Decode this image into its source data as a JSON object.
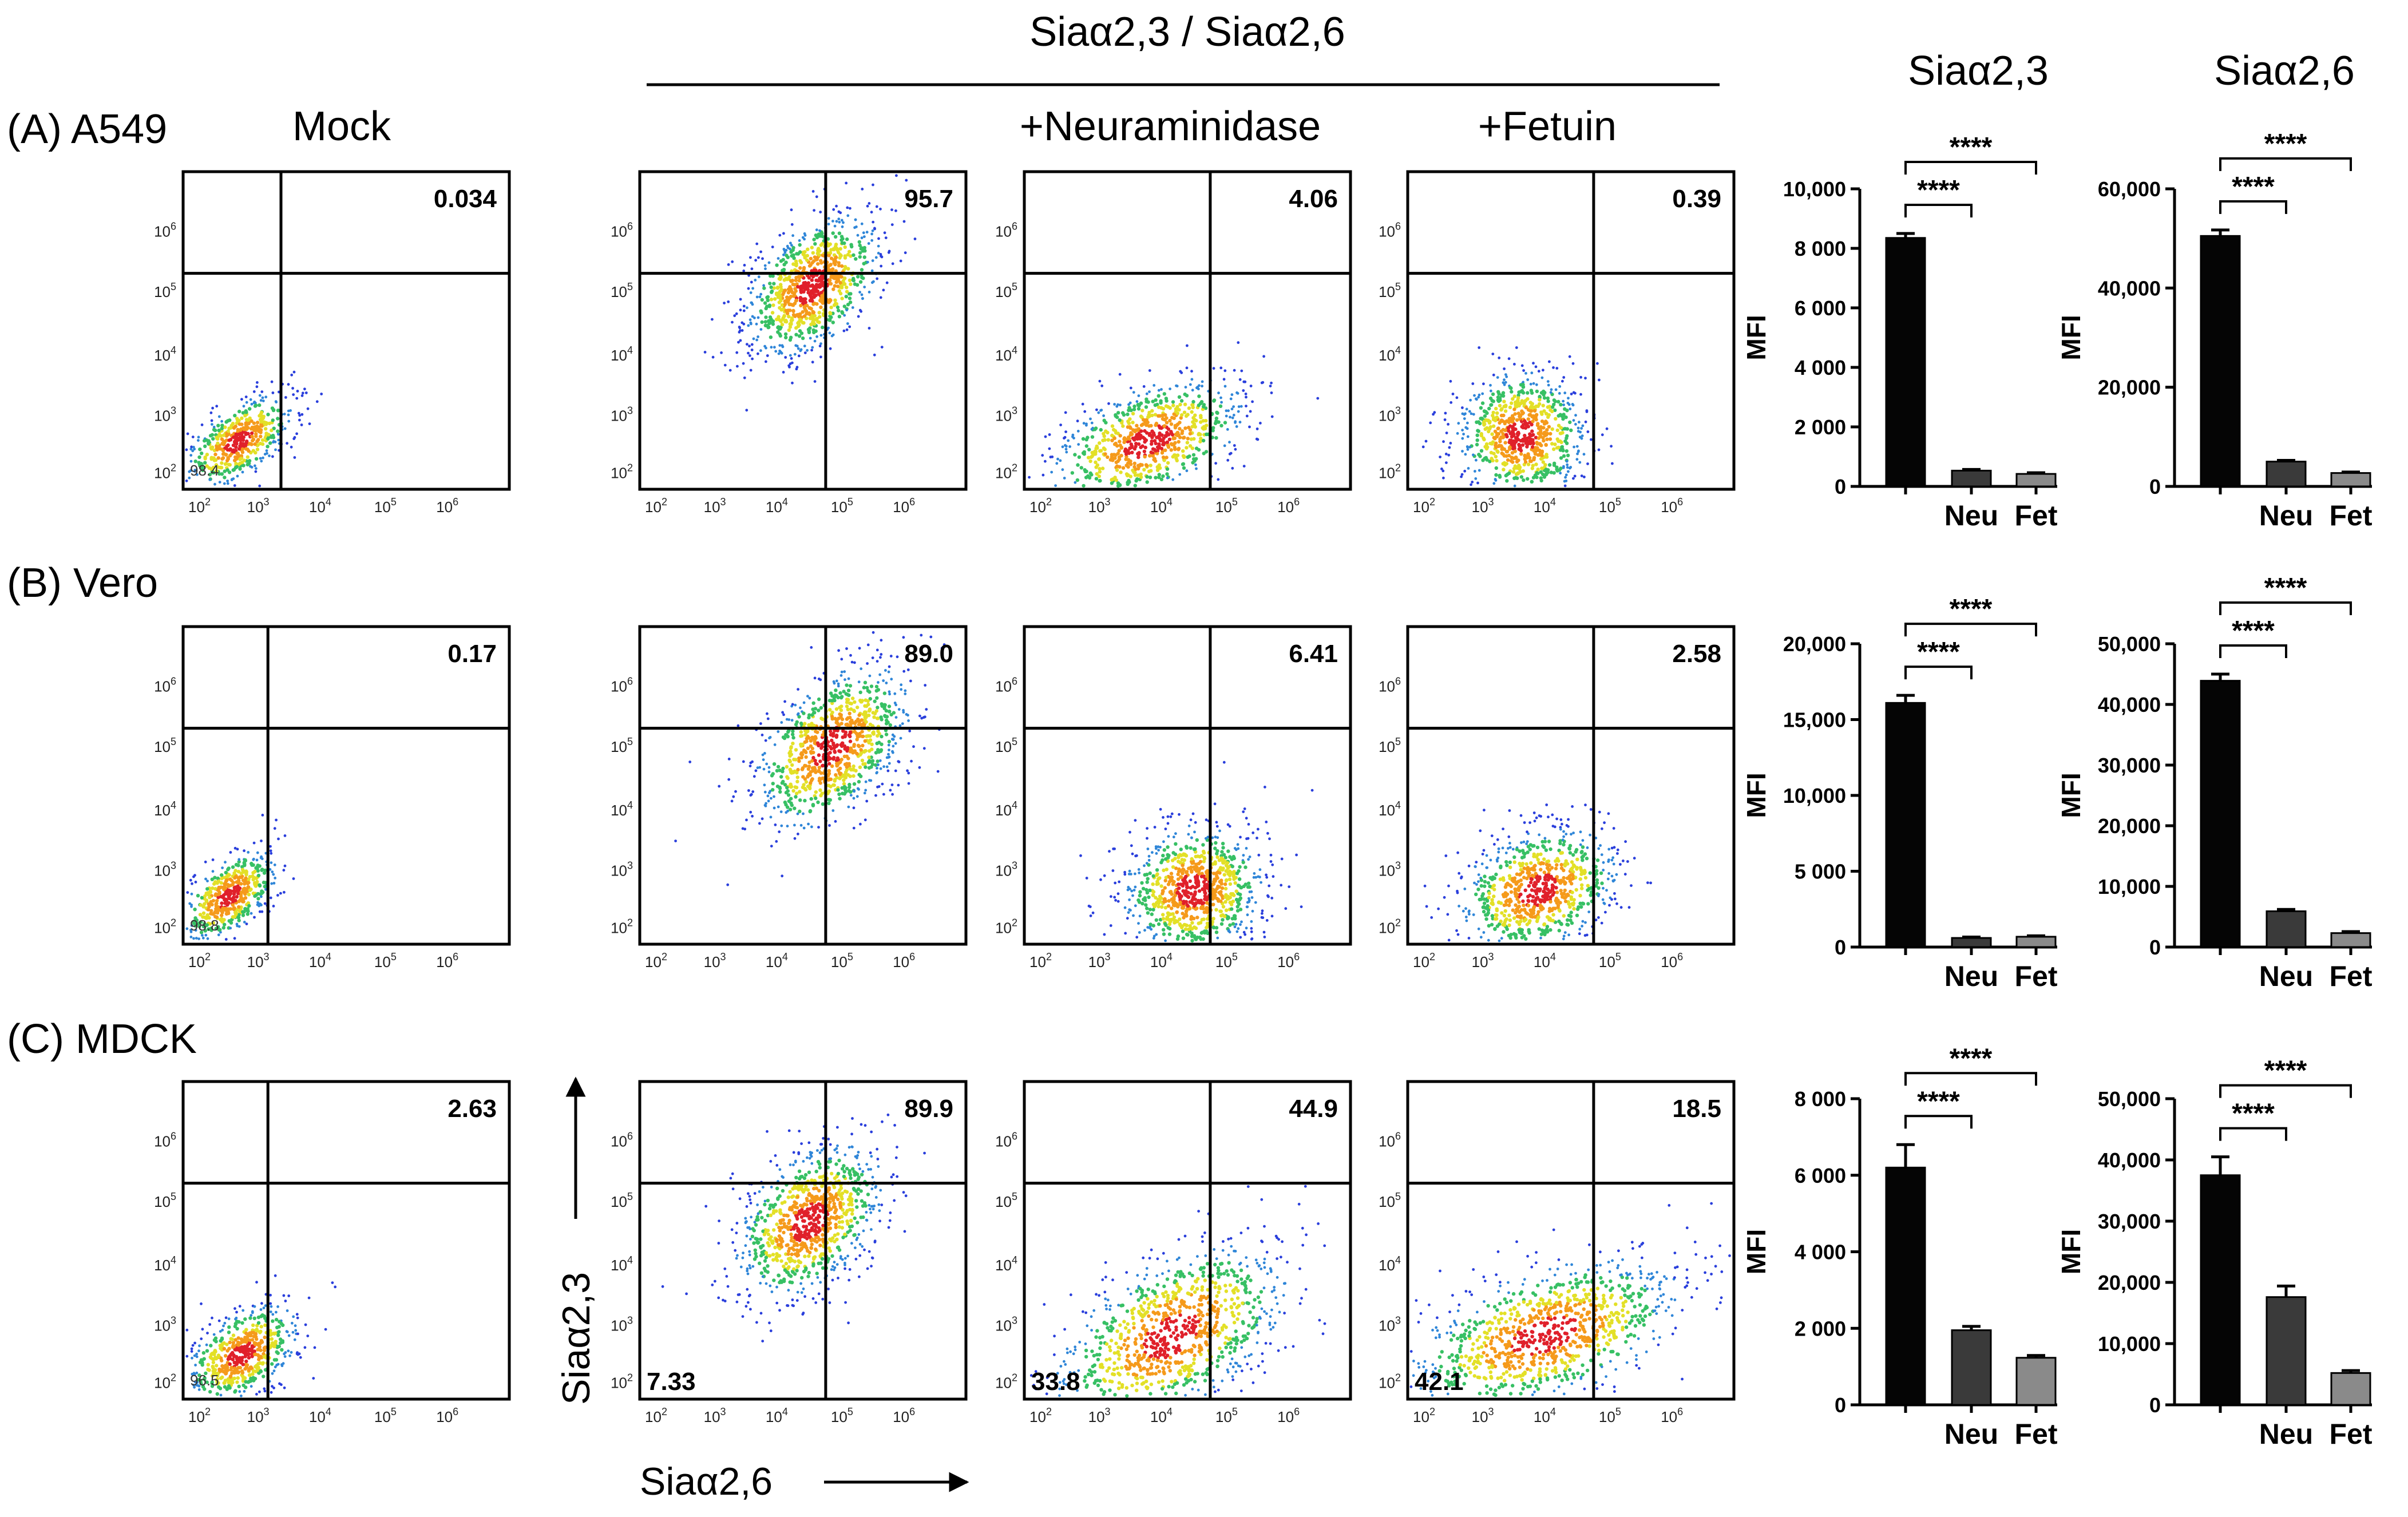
{
  "header": {
    "group_title": "Siaα2,3 / Siaα2,6",
    "col_mock": "Mock",
    "col_neuraminidase": "+Neuraminidase",
    "col_fetuin": "+Fetuin",
    "bar_title_23": "Siaα2,3",
    "bar_title_26": "Siaα2,6"
  },
  "axes": {
    "y_name": "Siaα2,3",
    "x_name": "Siaα2,6",
    "tick_base": "10",
    "tick_exponents": [
      "2",
      "3",
      "4",
      "5",
      "6"
    ]
  },
  "rows": [
    {
      "id": "a549",
      "label": "(A) A549",
      "flow": {
        "mock": {
          "upper_right": "0.034",
          "lower_left": "98.4"
        },
        "stained": {
          "upper_right": "95.7",
          "lower_left": ""
        },
        "neuraminidase": {
          "upper_right": "4.06",
          "lower_left": ""
        },
        "fetuin": {
          "upper_right": "0.39",
          "lower_left": ""
        }
      }
    },
    {
      "id": "vero",
      "label": "(B) Vero",
      "flow": {
        "mock": {
          "upper_right": "0.17",
          "lower_left": "98.8"
        },
        "stained": {
          "upper_right": "89.0",
          "lower_left": ""
        },
        "neuraminidase": {
          "upper_right": "6.41",
          "lower_left": ""
        },
        "fetuin": {
          "upper_right": "2.58",
          "lower_left": ""
        }
      }
    },
    {
      "id": "mdck",
      "label": "(C) MDCK",
      "flow": {
        "mock": {
          "upper_right": "2.63",
          "lower_left": "96.5"
        },
        "stained": {
          "upper_right": "89.9",
          "lower_left": "7.33"
        },
        "neuraminidase": {
          "upper_right": "44.9",
          "lower_left": "33.8"
        },
        "fetuin": {
          "upper_right": "18.5",
          "lower_left": "42.1"
        }
      }
    }
  ],
  "chart_data": [
    {
      "type": "bar",
      "panel": "A549 Siaα2,3",
      "ylabel": "MFI",
      "categories": [
        "",
        "Neu",
        "Fet"
      ],
      "values": [
        8350,
        530,
        420
      ],
      "errors": [
        150,
        40,
        40
      ],
      "ylim": [
        0,
        10000
      ],
      "yticks": [
        0,
        2000,
        4000,
        6000,
        8000,
        10000
      ],
      "ytick_labels": [
        "0",
        "2 000",
        "4 000",
        "6 000",
        "8 000",
        "10,000"
      ],
      "significance": [
        "****",
        "****"
      ],
      "colors": [
        "#050505",
        "#3a3a3a",
        "#8a8a8a"
      ]
    },
    {
      "type": "bar",
      "panel": "A549 Siaα2,6",
      "ylabel": "MFI",
      "categories": [
        "",
        "Neu",
        "Fet"
      ],
      "values": [
        50500,
        5000,
        2700
      ],
      "errors": [
        1200,
        250,
        200
      ],
      "ylim": [
        0,
        60000
      ],
      "yticks": [
        0,
        20000,
        40000,
        60000
      ],
      "ytick_labels": [
        "0",
        "20,000",
        "40,000",
        "60,000"
      ],
      "significance": [
        "****",
        "****"
      ],
      "colors": [
        "#050505",
        "#3a3a3a",
        "#8a8a8a"
      ]
    },
    {
      "type": "bar",
      "panel": "Vero Siaα2,3",
      "ylabel": "MFI",
      "categories": [
        "",
        "Neu",
        "Fet"
      ],
      "values": [
        16100,
        600,
        680
      ],
      "errors": [
        500,
        60,
        60
      ],
      "ylim": [
        0,
        20000
      ],
      "yticks": [
        0,
        5000,
        10000,
        15000,
        20000
      ],
      "ytick_labels": [
        "0",
        "5 000",
        "10,000",
        "15,000",
        "20,000"
      ],
      "significance": [
        "****",
        "****"
      ],
      "colors": [
        "#050505",
        "#3a3a3a",
        "#8a8a8a"
      ]
    },
    {
      "type": "bar",
      "panel": "Vero Siaα2,6",
      "ylabel": "MFI",
      "categories": [
        "",
        "Neu",
        "Fet"
      ],
      "values": [
        43900,
        5900,
        2300
      ],
      "errors": [
        1100,
        300,
        250
      ],
      "ylim": [
        0,
        50000
      ],
      "yticks": [
        0,
        10000,
        20000,
        30000,
        40000,
        50000
      ],
      "ytick_labels": [
        "0",
        "10,000",
        "20,000",
        "30,000",
        "40,000",
        "50,000"
      ],
      "significance": [
        "****",
        "****"
      ],
      "colors": [
        "#050505",
        "#3a3a3a",
        "#8a8a8a"
      ]
    },
    {
      "type": "bar",
      "panel": "MDCK Siaα2,3",
      "ylabel": "MFI",
      "categories": [
        "",
        "Neu",
        "Fet"
      ],
      "values": [
        6200,
        1950,
        1230
      ],
      "errors": [
        600,
        100,
        60
      ],
      "ylim": [
        0,
        8000
      ],
      "yticks": [
        0,
        2000,
        4000,
        6000,
        8000
      ],
      "ytick_labels": [
        "0",
        "2 000",
        "4 000",
        "6 000",
        "8 000"
      ],
      "significance": [
        "****",
        "****"
      ],
      "colors": [
        "#050505",
        "#3a3a3a",
        "#8a8a8a"
      ]
    },
    {
      "type": "bar",
      "panel": "MDCK Siaα2,6",
      "ylabel": "MFI",
      "categories": [
        "",
        "Neu",
        "Fet"
      ],
      "values": [
        37500,
        17600,
        5200
      ],
      "errors": [
        3000,
        1800,
        400
      ],
      "ylim": [
        0,
        50000
      ],
      "yticks": [
        0,
        10000,
        20000,
        30000,
        40000,
        50000
      ],
      "ytick_labels": [
        "0",
        "10,000",
        "20,000",
        "30,000",
        "40,000",
        "50,000"
      ],
      "significance": [
        "****",
        "****"
      ],
      "colors": [
        "#050505",
        "#3a3a3a",
        "#8a8a8a"
      ]
    }
  ]
}
